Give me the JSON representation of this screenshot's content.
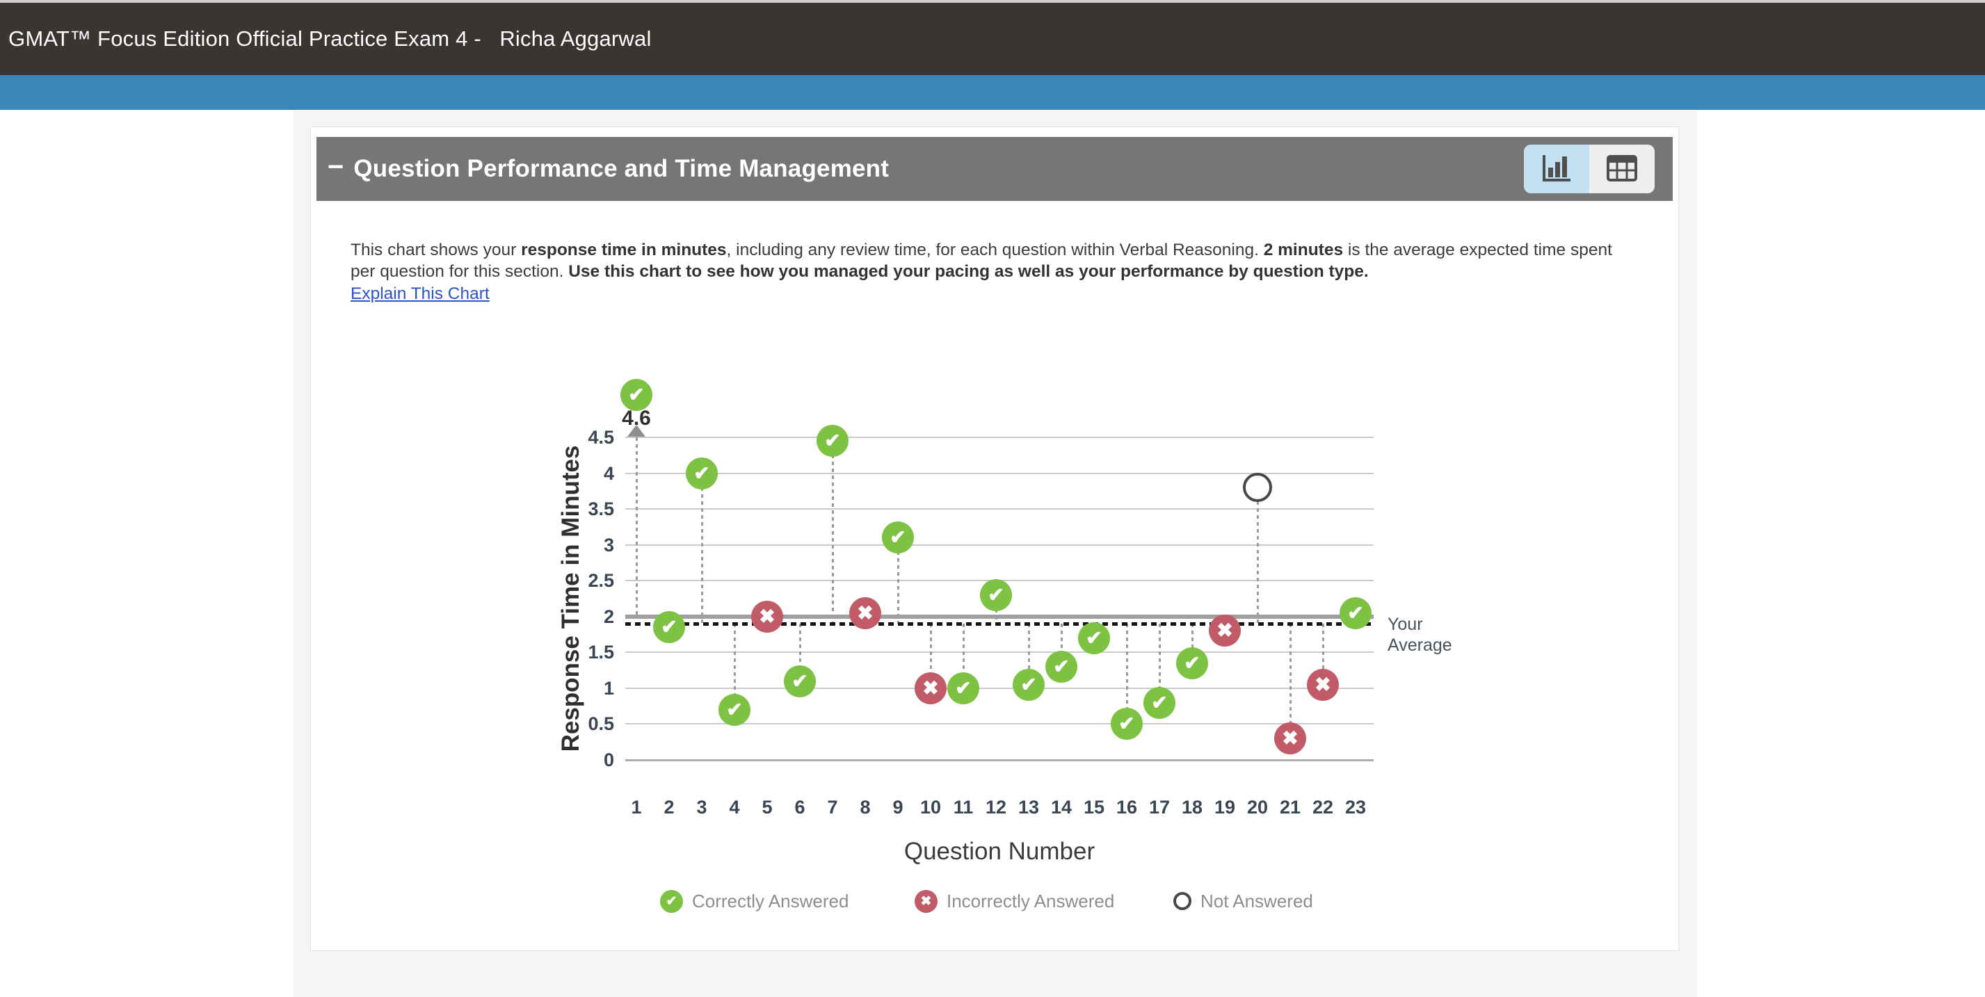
{
  "window": {
    "top_bar_title": "GMAT™ Focus Edition Official Practice Exam 4 -   Richa Aggarwal"
  },
  "panel": {
    "title": "Question Performance and Time Management",
    "collapse_glyph": "−",
    "view_toggle_icons": [
      "bar-chart-icon",
      "table-icon"
    ]
  },
  "description": {
    "segments": [
      {
        "text": "This chart shows your ",
        "bold": false
      },
      {
        "text": "response time in minutes",
        "bold": true
      },
      {
        "text": ", including any review time, for each question within Verbal Reasoning. ",
        "bold": false
      },
      {
        "text": "2 minutes",
        "bold": true
      },
      {
        "text": " is the average expected time spent per question for this section. ",
        "bold": false
      },
      {
        "text": "Use this chart to see how you managed your pacing as well as your performance by question type.",
        "bold": true
      }
    ],
    "link_text": "Explain This Chart"
  },
  "chart_data": {
    "type": "scatter",
    "xlabel": "Question Number",
    "ylabel": "Response Time in Minutes",
    "ylim": [
      0,
      4.5
    ],
    "yticks": [
      0,
      0.5,
      1,
      1.5,
      2,
      2.5,
      3,
      3.5,
      4,
      4.5
    ],
    "expected_average": 2,
    "your_average": 1.9,
    "your_average_label": "Your Average",
    "clipped_annotation": {
      "question": 1,
      "label": "4.6"
    },
    "points": [
      {
        "q": 1,
        "minutes": 4.6,
        "status": "correct",
        "clipped": true
      },
      {
        "q": 2,
        "minutes": 1.85,
        "status": "correct"
      },
      {
        "q": 3,
        "minutes": 4.0,
        "status": "correct"
      },
      {
        "q": 4,
        "minutes": 0.7,
        "status": "correct"
      },
      {
        "q": 5,
        "minutes": 2.0,
        "status": "incorrect"
      },
      {
        "q": 6,
        "minutes": 1.1,
        "status": "correct"
      },
      {
        "q": 7,
        "minutes": 4.45,
        "status": "correct"
      },
      {
        "q": 8,
        "minutes": 2.05,
        "status": "incorrect"
      },
      {
        "q": 9,
        "minutes": 3.1,
        "status": "correct"
      },
      {
        "q": 10,
        "minutes": 1.0,
        "status": "incorrect"
      },
      {
        "q": 11,
        "minutes": 1.0,
        "status": "correct"
      },
      {
        "q": 12,
        "minutes": 2.3,
        "status": "correct"
      },
      {
        "q": 13,
        "minutes": 1.05,
        "status": "correct"
      },
      {
        "q": 14,
        "minutes": 1.3,
        "status": "correct"
      },
      {
        "q": 15,
        "minutes": 1.7,
        "status": "correct"
      },
      {
        "q": 16,
        "minutes": 0.5,
        "status": "correct"
      },
      {
        "q": 17,
        "minutes": 0.8,
        "status": "correct"
      },
      {
        "q": 18,
        "minutes": 1.35,
        "status": "correct"
      },
      {
        "q": 19,
        "minutes": 1.8,
        "status": "incorrect"
      },
      {
        "q": 20,
        "minutes": 3.8,
        "status": "not_answered"
      },
      {
        "q": 21,
        "minutes": 0.3,
        "status": "incorrect"
      },
      {
        "q": 22,
        "minutes": 1.05,
        "status": "incorrect"
      },
      {
        "q": 23,
        "minutes": 2.05,
        "status": "correct"
      }
    ],
    "legend": [
      {
        "status": "correct",
        "label": "Correctly Answered"
      },
      {
        "status": "incorrect",
        "label": "Incorrectly Answered"
      },
      {
        "status": "not_answered",
        "label": "Not Answered"
      }
    ],
    "colors": {
      "correct": "#7dc243",
      "incorrect": "#c25b68",
      "not_answered_ring": "#484848",
      "grid": "#cbcbcb",
      "expected_line": "#9f9f9f",
      "your_average_line": "#141414",
      "connector": "#9b9b9b"
    }
  }
}
